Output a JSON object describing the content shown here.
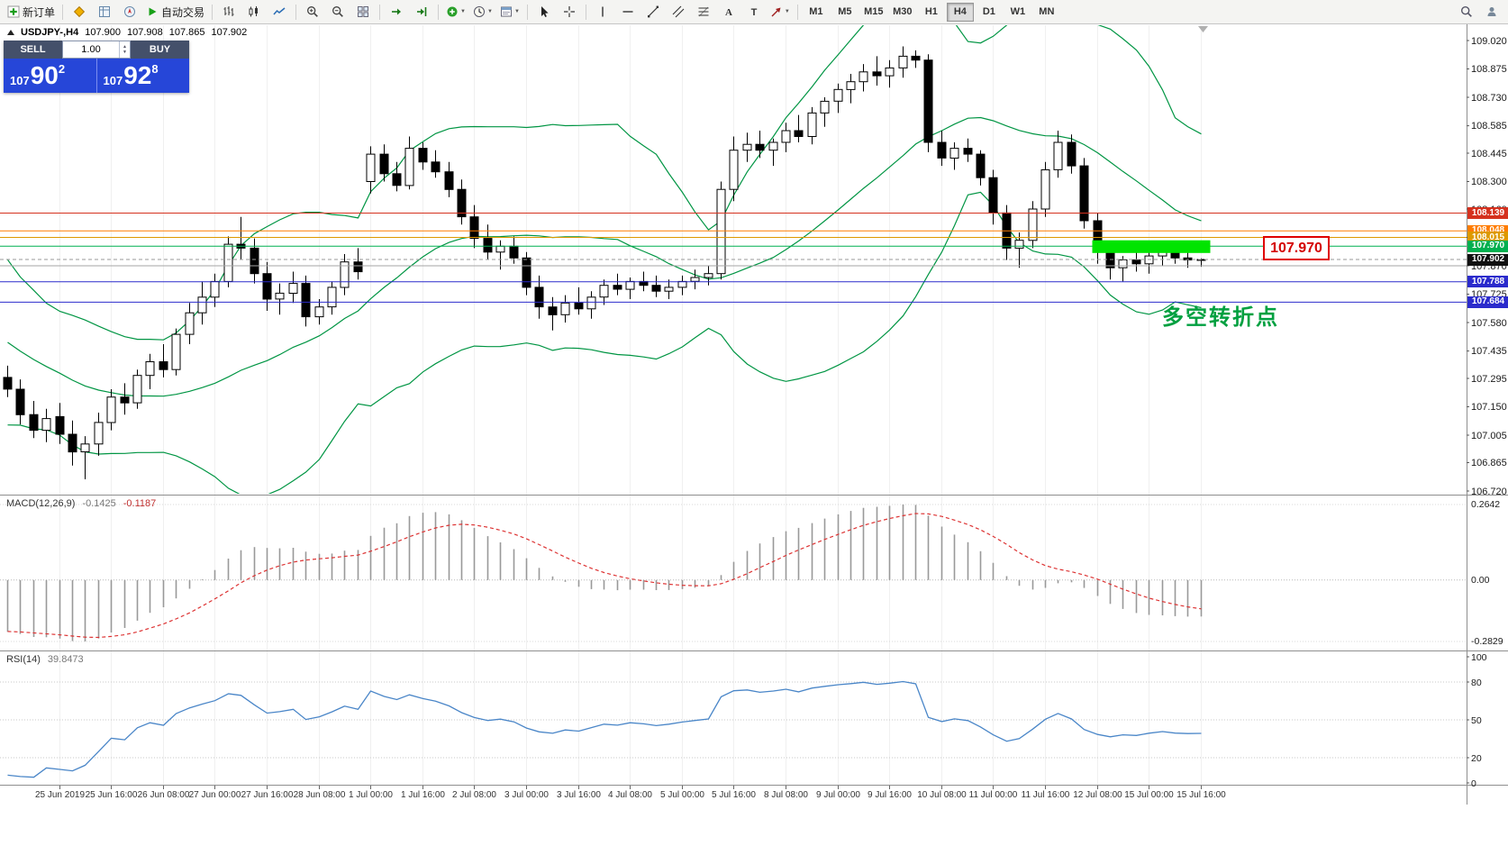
{
  "toolbar": {
    "left_items": [
      {
        "type": "button",
        "name": "new-order",
        "icon": "new-order",
        "label": "新订单"
      },
      {
        "type": "sep"
      },
      {
        "type": "icon",
        "name": "market-watch",
        "icon": "market-watch"
      },
      {
        "type": "icon",
        "name": "data-window",
        "icon": "data-window"
      },
      {
        "type": "icon",
        "name": "navigator",
        "icon": "navigator"
      },
      {
        "type": "button",
        "name": "autotrading",
        "icon": "autotrading",
        "label": "自动交易"
      },
      {
        "type": "sep"
      },
      {
        "type": "icon",
        "name": "bar-chart",
        "icon": "bar-chart"
      },
      {
        "type": "icon",
        "name": "candlestick-chart",
        "icon": "candles"
      },
      {
        "type": "icon",
        "name": "line-chart",
        "icon": "line-chart"
      },
      {
        "type": "sep"
      },
      {
        "type": "icon",
        "name": "zoom-in",
        "icon": "zoom-in"
      },
      {
        "type": "icon",
        "name": "zoom-out",
        "icon": "zoom-out"
      },
      {
        "type": "icon",
        "name": "tile-windows",
        "icon": "tile"
      },
      {
        "type": "sep"
      },
      {
        "type": "icon",
        "name": "auto-scroll",
        "icon": "auto-scroll"
      },
      {
        "type": "icon",
        "name": "chart-shift",
        "icon": "chart-shift"
      },
      {
        "type": "sep"
      },
      {
        "type": "icon",
        "name": "indicators",
        "icon": "indicators",
        "caret": true
      },
      {
        "type": "icon",
        "name": "periods",
        "icon": "clock",
        "caret": true
      },
      {
        "type": "icon",
        "name": "templates",
        "icon": "template",
        "caret": true
      },
      {
        "type": "sep"
      },
      {
        "type": "icon",
        "name": "cursor",
        "icon": "cursor"
      },
      {
        "type": "icon",
        "name": "crosshair",
        "icon": "crosshair"
      },
      {
        "type": "sep"
      },
      {
        "type": "icon",
        "name": "vertical-line",
        "icon": "vline"
      },
      {
        "type": "icon",
        "name": "horizontal-line",
        "icon": "hline"
      },
      {
        "type": "icon",
        "name": "trendline",
        "icon": "trend"
      },
      {
        "type": "icon",
        "name": "equidistant-channel",
        "icon": "channel"
      },
      {
        "type": "icon",
        "name": "fibonacci-retracement",
        "icon": "fibo"
      },
      {
        "type": "icon",
        "name": "text",
        "icon": "text"
      },
      {
        "type": "icon",
        "name": "text-label",
        "icon": "label"
      },
      {
        "type": "icon",
        "name": "arrows",
        "icon": "arrow",
        "caret": true
      },
      {
        "type": "sep"
      }
    ],
    "timeframes": [
      "M1",
      "M5",
      "M15",
      "M30",
      "H1",
      "H4",
      "D1",
      "W1",
      "MN"
    ],
    "active_timeframe": "H4",
    "right_items": [
      {
        "type": "icon",
        "name": "search",
        "icon": "search"
      },
      {
        "type": "icon",
        "name": "community",
        "icon": "person"
      }
    ]
  },
  "chart": {
    "ohlc": {
      "symbol": "USDJPY-,H4",
      "open": "107.900",
      "high": "107.908",
      "low": "107.865",
      "close": "107.902"
    },
    "trade_panel": {
      "sell_label": "SELL",
      "buy_label": "BUY",
      "volume": "1.00",
      "sell_price": {
        "base": "107",
        "pips": "90",
        "point": "2"
      },
      "buy_price": {
        "base": "107",
        "pips": "92",
        "point": "8"
      }
    },
    "price_axis_ticks": [
      "109.020",
      "108.875",
      "108.730",
      "108.585",
      "108.445",
      "108.300",
      "108.160",
      "108.015",
      "107.870",
      "107.725",
      "107.580",
      "107.435",
      "107.295",
      "107.150",
      "107.005",
      "106.865",
      "106.720"
    ],
    "hlines": [
      {
        "value": 108.139,
        "color": "#d5311e",
        "tag": true
      },
      {
        "value": 108.048,
        "color": "#ff7c00",
        "tag": true
      },
      {
        "value": 108.015,
        "color": "#dd9900",
        "tag": true
      },
      {
        "value": 107.97,
        "color": "#00b050",
        "tag": true
      },
      {
        "value": 107.87,
        "color": "#a6a6a6",
        "tag": false
      },
      {
        "value": 107.788,
        "color": "#2b2bcc",
        "tag": true
      },
      {
        "value": 107.684,
        "color": "#2b2bcc",
        "tag": true
      }
    ],
    "current_price": "107.902",
    "callout": "107.970",
    "annotation": "多空转折点",
    "highlight_zone": {
      "price_top": 108.0,
      "price_bottom": 107.935,
      "color": "#00e400",
      "start_bar": 84
    },
    "time_labels": [
      {
        "bar": 4,
        "text": "25 Jun 2019"
      },
      {
        "bar": 8,
        "text": "25 Jun 16:00"
      },
      {
        "bar": 12,
        "text": "26 Jun 08:00"
      },
      {
        "bar": 16,
        "text": "27 Jun 00:00"
      },
      {
        "bar": 20,
        "text": "27 Jun 16:00"
      },
      {
        "bar": 24,
        "text": "28 Jun 08:00"
      },
      {
        "bar": 28,
        "text": "1 Jul 00:00"
      },
      {
        "bar": 32,
        "text": "1 Jul 16:00"
      },
      {
        "bar": 36,
        "text": "2 Jul 08:00"
      },
      {
        "bar": 40,
        "text": "3 Jul 00:00"
      },
      {
        "bar": 44,
        "text": "3 Jul 16:00"
      },
      {
        "bar": 48,
        "text": "4 Jul 08:00"
      },
      {
        "bar": 52,
        "text": "5 Jul 00:00"
      },
      {
        "bar": 56,
        "text": "5 Jul 16:00"
      },
      {
        "bar": 60,
        "text": "8 Jul 08:00"
      },
      {
        "bar": 64,
        "text": "9 Jul 00:00"
      },
      {
        "bar": 68,
        "text": "9 Jul 16:00"
      },
      {
        "bar": 72,
        "text": "10 Jul 08:00"
      },
      {
        "bar": 76,
        "text": "11 Jul 00:00"
      },
      {
        "bar": 80,
        "text": "11 Jul 16:00"
      },
      {
        "bar": 84,
        "text": "12 Jul 08:00"
      },
      {
        "bar": 88,
        "text": "15 Jul 00:00"
      },
      {
        "bar": 92,
        "text": "15 Jul 16:00"
      }
    ]
  },
  "chart_data": {
    "type": "candlestick",
    "symbol": "USDJPY",
    "period": "H4",
    "ylim": [
      106.72,
      109.02
    ],
    "colors": {
      "bollinger": "#009543",
      "bull": "#ffffff",
      "bear": "#000000",
      "wick": "#000000",
      "macd_histogram": "#999999",
      "macd_signal": "#dd3333",
      "rsi": "#4a86c8"
    },
    "overlays": {
      "bollinger_bands": {
        "period": 20,
        "deviations": 2
      }
    },
    "prehistory_closes": [
      108.1,
      108.0,
      107.9,
      107.8,
      107.7,
      107.62,
      107.55,
      107.5,
      107.45,
      107.42,
      107.4,
      107.38,
      107.36,
      107.34,
      107.32,
      107.33,
      107.35,
      107.32,
      107.29,
      107.31
    ],
    "candles": [
      [
        107.3,
        107.36,
        107.2,
        107.24
      ],
      [
        107.24,
        107.29,
        107.06,
        107.11
      ],
      [
        107.11,
        107.18,
        106.99,
        107.03
      ],
      [
        107.03,
        107.14,
        106.97,
        107.09
      ],
      [
        107.1,
        107.17,
        106.96,
        107.01
      ],
      [
        107.01,
        107.08,
        106.85,
        106.92
      ],
      [
        106.92,
        107.0,
        106.78,
        106.96
      ],
      [
        106.96,
        107.12,
        106.9,
        107.07
      ],
      [
        107.07,
        107.24,
        107.03,
        107.2
      ],
      [
        107.2,
        107.27,
        107.11,
        107.17
      ],
      [
        107.17,
        107.34,
        107.14,
        107.31
      ],
      [
        107.31,
        107.42,
        107.24,
        107.38
      ],
      [
        107.38,
        107.47,
        107.3,
        107.34
      ],
      [
        107.34,
        107.55,
        107.31,
        107.52
      ],
      [
        107.52,
        107.68,
        107.47,
        107.63
      ],
      [
        107.63,
        107.79,
        107.57,
        107.71
      ],
      [
        107.71,
        107.83,
        107.66,
        107.79
      ],
      [
        107.79,
        108.02,
        107.76,
        107.98
      ],
      [
        107.98,
        108.12,
        107.9,
        107.96
      ],
      [
        107.96,
        108.01,
        107.78,
        107.83
      ],
      [
        107.83,
        107.89,
        107.64,
        107.7
      ],
      [
        107.7,
        107.78,
        107.62,
        107.73
      ],
      [
        107.73,
        107.84,
        107.68,
        107.78
      ],
      [
        107.78,
        107.82,
        107.56,
        107.61
      ],
      [
        107.61,
        107.7,
        107.57,
        107.66
      ],
      [
        107.66,
        107.79,
        107.62,
        107.76
      ],
      [
        107.76,
        107.93,
        107.72,
        107.89
      ],
      [
        107.89,
        107.96,
        107.8,
        107.84
      ],
      [
        108.3,
        108.48,
        108.24,
        108.44
      ],
      [
        108.44,
        108.49,
        108.3,
        108.34
      ],
      [
        108.34,
        108.4,
        108.25,
        108.28
      ],
      [
        108.28,
        108.53,
        108.26,
        108.47
      ],
      [
        108.47,
        108.5,
        108.36,
        108.4
      ],
      [
        108.4,
        108.46,
        108.32,
        108.35
      ],
      [
        108.35,
        108.4,
        108.22,
        108.26
      ],
      [
        108.26,
        108.31,
        108.08,
        108.12
      ],
      [
        108.12,
        108.18,
        107.96,
        108.01
      ],
      [
        108.01,
        108.08,
        107.9,
        107.94
      ],
      [
        107.94,
        108.0,
        107.85,
        107.97
      ],
      [
        107.97,
        108.02,
        107.88,
        107.91
      ],
      [
        107.91,
        107.94,
        107.72,
        107.76
      ],
      [
        107.76,
        107.82,
        107.6,
        107.66
      ],
      [
        107.66,
        107.71,
        107.54,
        107.62
      ],
      [
        107.62,
        107.72,
        107.58,
        107.68
      ],
      [
        107.68,
        107.76,
        107.62,
        107.65
      ],
      [
        107.65,
        107.74,
        107.6,
        107.71
      ],
      [
        107.71,
        107.8,
        107.67,
        107.77
      ],
      [
        107.77,
        107.83,
        107.72,
        107.75
      ],
      [
        107.75,
        107.81,
        107.7,
        107.79
      ],
      [
        107.79,
        107.84,
        107.74,
        107.77
      ],
      [
        107.77,
        107.82,
        107.71,
        107.74
      ],
      [
        107.74,
        107.8,
        107.7,
        107.76
      ],
      [
        107.76,
        107.82,
        107.72,
        107.79
      ],
      [
        107.79,
        107.85,
        107.75,
        107.81
      ],
      [
        107.81,
        107.87,
        107.77,
        107.83
      ],
      [
        107.83,
        108.3,
        107.8,
        108.26
      ],
      [
        108.26,
        108.53,
        108.2,
        108.46
      ],
      [
        108.46,
        108.55,
        108.4,
        108.49
      ],
      [
        108.49,
        108.56,
        108.42,
        108.46
      ],
      [
        108.46,
        108.52,
        108.38,
        108.5
      ],
      [
        108.5,
        108.6,
        108.45,
        108.56
      ],
      [
        108.56,
        108.64,
        108.5,
        108.53
      ],
      [
        108.53,
        108.68,
        108.49,
        108.65
      ],
      [
        108.65,
        108.73,
        108.58,
        108.71
      ],
      [
        108.71,
        108.8,
        108.65,
        108.77
      ],
      [
        108.77,
        108.85,
        108.7,
        108.81
      ],
      [
        108.81,
        108.9,
        108.76,
        108.86
      ],
      [
        108.86,
        108.94,
        108.79,
        108.84
      ],
      [
        108.84,
        108.92,
        108.78,
        108.88
      ],
      [
        108.88,
        108.99,
        108.83,
        108.94
      ],
      [
        108.94,
        108.97,
        108.88,
        108.92
      ],
      [
        108.92,
        108.95,
        108.45,
        108.5
      ],
      [
        108.5,
        108.56,
        108.38,
        108.42
      ],
      [
        108.42,
        108.5,
        108.36,
        108.47
      ],
      [
        108.47,
        108.52,
        108.4,
        108.44
      ],
      [
        108.44,
        108.46,
        108.28,
        108.32
      ],
      [
        108.32,
        108.36,
        108.08,
        108.14
      ],
      [
        108.14,
        108.18,
        107.9,
        107.96
      ],
      [
        107.96,
        108.04,
        107.86,
        108.0
      ],
      [
        108.0,
        108.2,
        107.96,
        108.16
      ],
      [
        108.16,
        108.4,
        108.12,
        108.36
      ],
      [
        108.36,
        108.56,
        108.32,
        108.5
      ],
      [
        108.5,
        108.54,
        108.34,
        108.38
      ],
      [
        108.38,
        108.42,
        108.06,
        108.1
      ],
      [
        108.1,
        108.14,
        107.88,
        107.94
      ],
      [
        107.94,
        107.98,
        107.8,
        107.86
      ],
      [
        107.86,
        107.92,
        107.79,
        107.9
      ],
      [
        107.9,
        107.96,
        107.84,
        107.88
      ],
      [
        107.88,
        107.95,
        107.83,
        107.92
      ],
      [
        107.92,
        107.99,
        107.87,
        107.95
      ],
      [
        107.95,
        107.98,
        107.88,
        107.91
      ],
      [
        107.91,
        107.96,
        107.86,
        107.9
      ],
      [
        107.9,
        107.908,
        107.865,
        107.902
      ]
    ],
    "indicators": {
      "macd": {
        "label": "MACD(12,26,9)",
        "value": "-0.1425",
        "signal_value": "-0.1187",
        "axis": [
          "0.2642",
          "0.00",
          "-0.2829"
        ]
      },
      "rsi": {
        "label": "RSI(14)",
        "value": "39.8473",
        "axis": [
          "100",
          "80",
          "50",
          "20",
          "0"
        ],
        "levels": [
          80,
          50,
          20
        ]
      }
    }
  }
}
